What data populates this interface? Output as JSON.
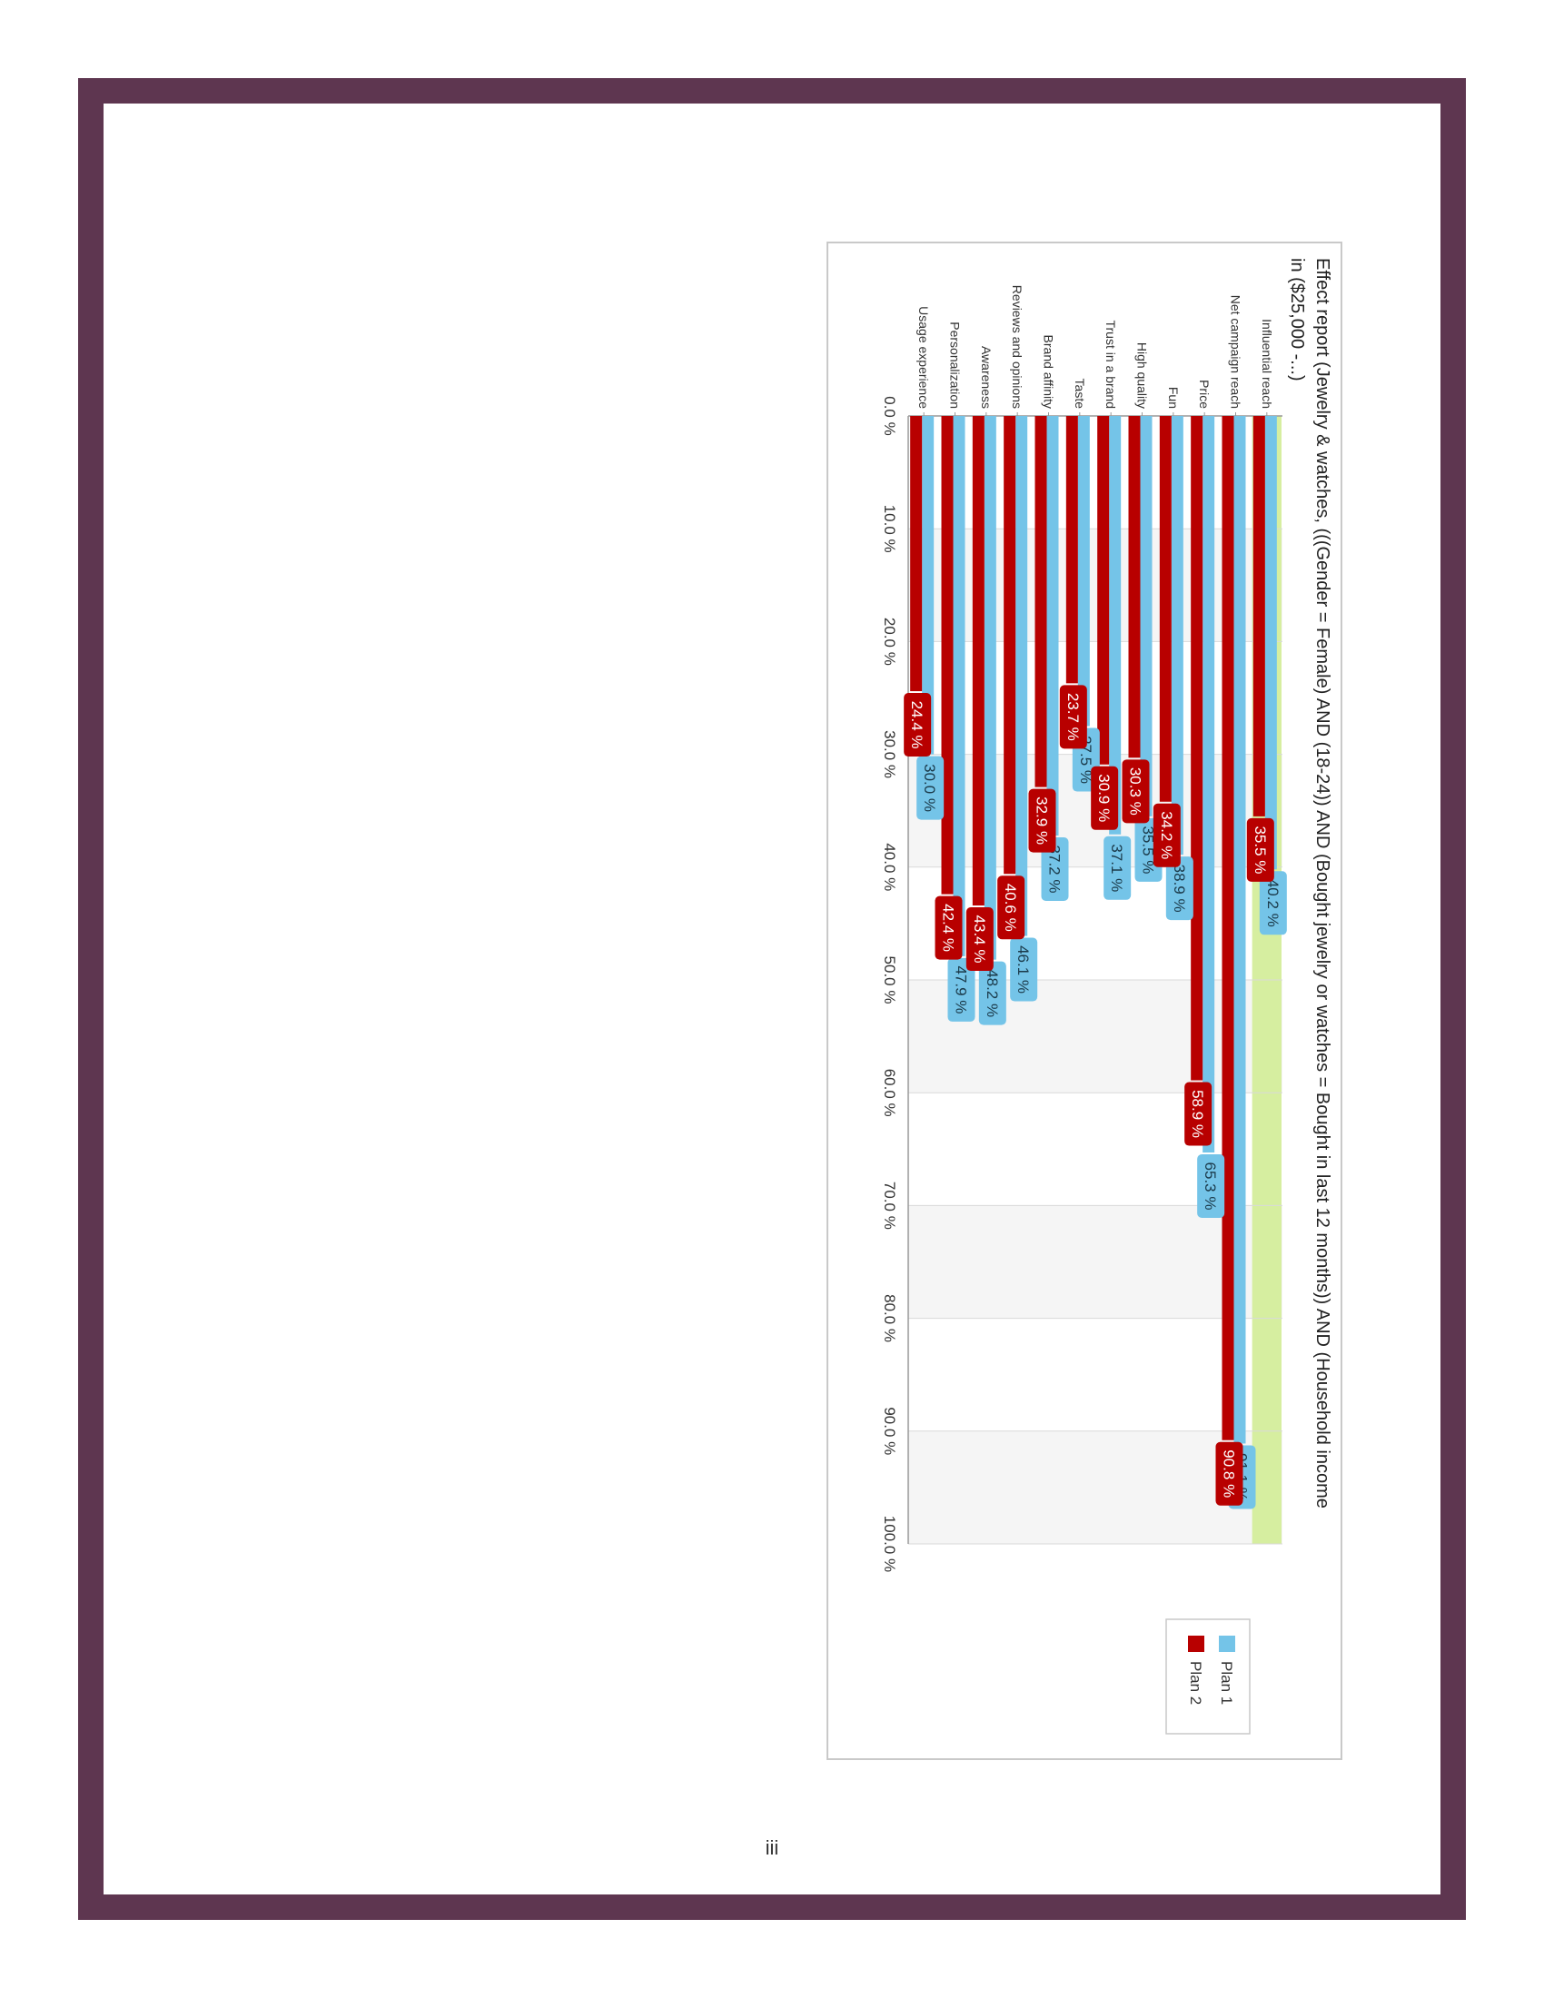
{
  "page": {
    "page_number": "iii"
  },
  "colors": {
    "frame": "#5e3650",
    "plan1": "#74c4e8",
    "plan2": "#b80000",
    "highlight": "#d6eea0",
    "grid": "#d9d9d9"
  },
  "chart_data": {
    "type": "bar",
    "orientation": "horizontal",
    "rotated": "90deg clockwise",
    "title": "Effect report (Jewelry & watches, (((Gender = Female) AND (18-24)) AND (Bought jewelry or watches = Bought in last 12 months)) AND (Household income in ($25,000 -...)",
    "categories": [
      "Influential reach",
      "Net campaign reach",
      "Price",
      "Fun",
      "High quality",
      "Trust in a brand",
      "Taste",
      "Brand affinity",
      "Reviews and opinions",
      "Awareness",
      "Personalization",
      "Usage experience"
    ],
    "series": [
      {
        "name": "Plan 1",
        "values": [
          40.2,
          91.1,
          65.3,
          38.9,
          35.5,
          37.1,
          27.5,
          37.2,
          46.1,
          48.2,
          47.9,
          30.0
        ],
        "labels": [
          "40.2 %",
          "91.1 %",
          "65.3 %",
          "38.9 %",
          "35.5 %",
          "37.1 %",
          "27.5 %",
          "37.2 %",
          "46.1 %",
          "48.2 %",
          "47.9 %",
          "30.0 %"
        ]
      },
      {
        "name": "Plan 2",
        "values": [
          35.5,
          90.8,
          58.9,
          34.2,
          30.3,
          30.9,
          23.7,
          32.9,
          40.6,
          43.4,
          42.4,
          24.4
        ],
        "labels": [
          "35.5 %",
          "90.8 %",
          "58.9 %",
          "34.2 %",
          "30.3 %",
          "30.9 %",
          "23.7 %",
          "32.9 %",
          "40.6 %",
          "43.4 %",
          "42.4 %",
          "24.4 %"
        ]
      }
    ],
    "highlighted_category": "Influential reach",
    "xlim": [
      0,
      100
    ],
    "ticks": [
      "0.0 %",
      "10.0 %",
      "20.0 %",
      "30.0 %",
      "40.0 %",
      "50.0 %",
      "60.0 %",
      "70.0 %",
      "80.0 %",
      "90.0 %",
      "100.0 %"
    ],
    "grid": true,
    "legend": {
      "placement": "bottom",
      "entries": [
        "Plan 1",
        "Plan 2"
      ]
    }
  }
}
